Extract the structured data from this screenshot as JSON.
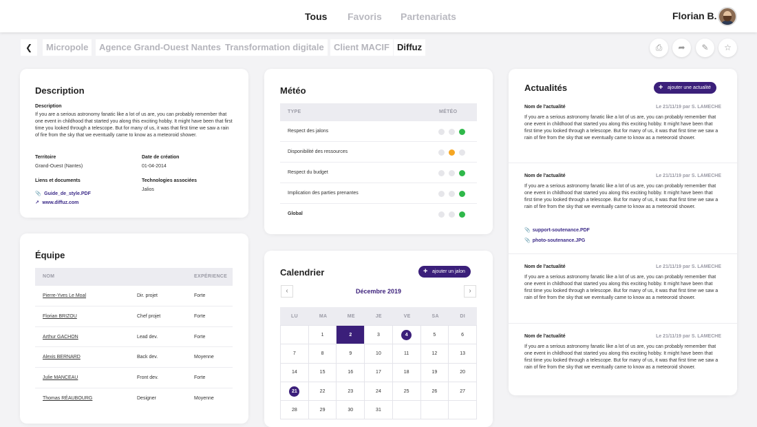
{
  "header": {
    "tabs": [
      "Tous",
      "Favoris",
      "Partenariats"
    ],
    "user": "Florian B."
  },
  "breadcrumb": {
    "items": [
      "Micropole",
      "Agence Grand-Ouest Nantes",
      "Transformation digitale",
      "Client MACIF",
      "Diffuz"
    ]
  },
  "description": {
    "title": "Description",
    "label": "Description",
    "text": "If you are a serious astronomy fanatic like a lot of us are, you can probably remember that one event in childhood that started you along this exciting hobby. It might have been that first time you looked through a telescope. But for many of us, it was that first time we saw a rain of fire from the sky that we eventually came to know as a meteoroid shower.",
    "territoire_label": "Territoire",
    "territoire": "Grand-Ouest (Nantes)",
    "date_label": "Date de création",
    "date": "01-04-2014",
    "liens_label": "Liens et documents",
    "link1": "Guide_de_style.PDF",
    "link2": "www.diffuz.com",
    "tech_label": "Technologies associées",
    "tech": "Jalios"
  },
  "equipe": {
    "title": "Équipe",
    "col_nom": "NOM",
    "col_exp": "EXPÉRIENCE",
    "rows": [
      {
        "name": "Pierre-Yves Le Moal",
        "role": "Dir. projet",
        "exp": "Forte"
      },
      {
        "name": "Florian BRIZOU",
        "role": "Chef projet",
        "exp": "Forte"
      },
      {
        "name": "Arthur GACHON",
        "role": "Lead dev.",
        "exp": "Forte"
      },
      {
        "name": "Alexis BERNARD",
        "role": "Back dev.",
        "exp": "Moyenne"
      },
      {
        "name": "Julie MANCEAU",
        "role": "Front dev.",
        "exp": "Forte"
      },
      {
        "name": "Thomas RÉAUBOURG",
        "role": "Designer",
        "exp": "Moyenne"
      }
    ]
  },
  "meteo": {
    "title": "Météo",
    "col_type": "TYPE",
    "col_meteo": "MÉTÉO",
    "rows": [
      {
        "label": "Respect des jalons",
        "status": "green"
      },
      {
        "label": "Disponibilité des ressources",
        "status": "orange"
      },
      {
        "label": "Respect du budget",
        "status": "green"
      },
      {
        "label": "Implication des parties prenantes",
        "status": "green"
      },
      {
        "label": "Global",
        "status": "green"
      }
    ],
    "colors": {
      "green": "#2fb84a",
      "orange": "#f5a623",
      "grey": "#e6e6ea"
    }
  },
  "calendrier": {
    "title": "Calendrier",
    "button": "ajouter un jalon",
    "month": "Décembre 2019",
    "days": [
      "LU",
      "MA",
      "ME",
      "JE",
      "VE",
      "SA",
      "DI"
    ],
    "weeks": [
      [
        "",
        "1",
        "2",
        "3",
        "4",
        "5",
        "6"
      ],
      [
        "7",
        "8",
        "9",
        "10",
        "11",
        "12",
        "13"
      ],
      [
        "14",
        "15",
        "16",
        "17",
        "18",
        "19",
        "20"
      ],
      [
        "21",
        "22",
        "23",
        "24",
        "25",
        "26",
        "27"
      ],
      [
        "28",
        "29",
        "30",
        "31",
        "",
        "",
        ""
      ]
    ]
  },
  "actualites": {
    "title": "Actualités",
    "button": "ajouter une actualité",
    "items": [
      {
        "name": "Nom de l'actualité",
        "meta": "Le 21/11/19 par S. LAMECHE",
        "text": "If you are a serious astronomy fanatic like a lot of us are, you can probably remember that one event in childhood that started you along this exciting hobby. It might have been that first time you looked through a telescope. But for many of us, it was that first time we saw a rain of fire from the sky that we eventually came to know as a meteoroid shower.",
        "files": []
      },
      {
        "name": "Nom de l'actualité",
        "meta": "Le 21/11/19 par S. LAMECHE",
        "text": "If you are a serious astronomy fanatic like a lot of us are, you can probably remember that one event in childhood that started you along this exciting hobby. It might have been that first time you looked through a telescope. But for many of us, it was that first time we saw a rain of fire from the sky that we eventually came to know as a meteoroid shower.",
        "files": [
          "support-soutenance.PDF",
          "photo-soutenance.JPG"
        ]
      },
      {
        "name": "Nom de l'actualité",
        "meta": "Le 21/11/19 par S. LAMECHE",
        "text": "If you are a serious astronomy fanatic like a lot of us are, you can probably remember that one event in childhood that started you along this exciting hobby. It might have been that first time you looked through a telescope. But for many of us, it was that first time we saw a rain of fire from the sky that we eventually came to know as a meteoroid shower.",
        "files": []
      },
      {
        "name": "Nom de l'actualité",
        "meta": "Le 21/11/19 par S. LAMECHE",
        "text": "If you are a serious astronomy fanatic like a lot of us are, you can probably remember that one event in childhood that started you along this exciting hobby. It might have been that first time you looked through a telescope. But for many of us, it was that first time we saw a rain of fire from the sky that we eventually came to know as a meteoroid shower.",
        "files": []
      }
    ]
  },
  "icons": {
    "back": "chevron-left-icon",
    "print": "print-icon",
    "share": "share-icon",
    "edit": "pencil-icon",
    "favorite": "star-icon"
  }
}
